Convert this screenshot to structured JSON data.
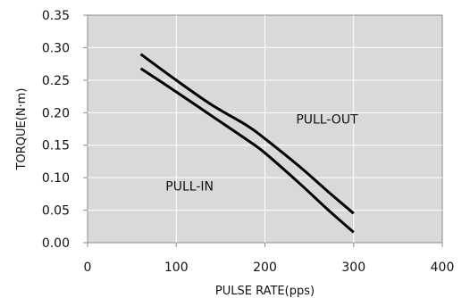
{
  "chart_data": {
    "type": "line",
    "title": "",
    "xlabel": "PULSE RATE(pps)",
    "ylabel": "TORQUE(N·m)",
    "xlim": [
      0,
      400
    ],
    "ylim": [
      0,
      0.35
    ],
    "x_ticks": [
      "0",
      "100",
      "200",
      "300",
      "400"
    ],
    "y_ticks": [
      "0.00",
      "0.05",
      "0.10",
      "0.15",
      "0.20",
      "0.25",
      "0.30",
      "0.35"
    ],
    "grid": true,
    "plot_background": "#d9d9d9",
    "line_color": "#000000",
    "series": [
      {
        "x": [
          60,
          100,
          140,
          180,
          200,
          240,
          270,
          300
        ],
        "y": [
          0.29,
          0.25,
          0.212,
          0.18,
          0.16,
          0.116,
          0.08,
          0.045
        ]
      },
      {
        "x": [
          60,
          100,
          140,
          180,
          200,
          240,
          270,
          300
        ],
        "y": [
          0.268,
          0.232,
          0.195,
          0.158,
          0.138,
          0.09,
          0.052,
          0.016
        ]
      }
    ],
    "annotations": [
      {
        "text": "PULL-OUT",
        "x": 270,
        "y": 0.183
      },
      {
        "text": "PULL-IN",
        "x": 115,
        "y": 0.08
      }
    ]
  }
}
